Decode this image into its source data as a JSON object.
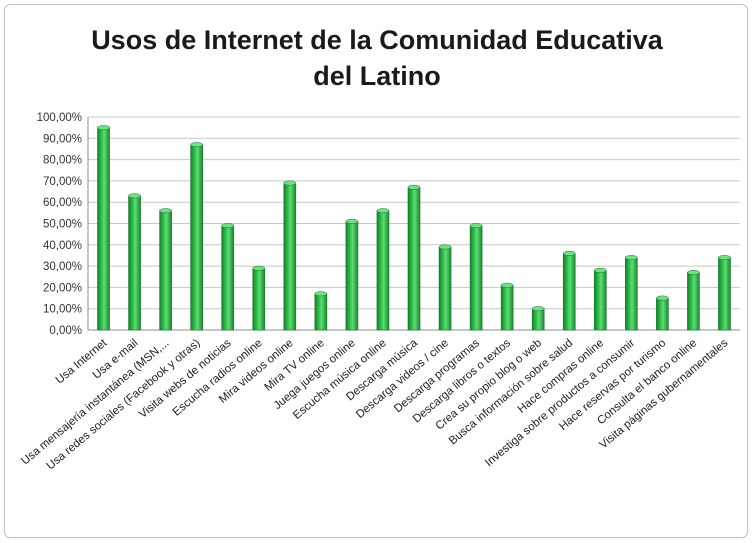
{
  "chart_data": {
    "type": "bar",
    "title": "Usos de Internet de la Comunidad Educativa\ndel Latino",
    "xlabel": "",
    "ylabel": "",
    "ylim": [
      0,
      100
    ],
    "yticks": [
      "0,00%",
      "10,00%",
      "20,00%",
      "30,00%",
      "40,00%",
      "50,00%",
      "60,00%",
      "70,00%",
      "80,00%",
      "90,00%",
      "100,00%"
    ],
    "grid": true,
    "legend": "none",
    "bar_color": "#22a93a",
    "categories": [
      "Usa Internet",
      "Usa e-mail",
      "Usa mensajería instantánea (MSN,...",
      "Usa redes sociales (Facebook y otras)",
      "Visita webs de noticias",
      "Escucha radios online",
      "Mira videos online",
      "Mira TV online",
      "Juega juegos online",
      "Escucha música online",
      "Descarga música",
      "Descarga videos / cine",
      "Descarga programas",
      "Descarga libros o textos",
      "Crea su propio blog o web",
      "Busca información sobre salud",
      "Hace compras online",
      "Investiga sobre productos a consumir",
      "Hace reservas por turismo",
      "Consulta el banco online",
      "Visita páginas gubernamentales"
    ],
    "values": [
      95,
      63,
      56,
      87,
      49,
      29,
      69,
      17,
      51,
      56,
      67,
      39,
      49,
      21,
      10,
      36,
      28,
      34,
      15,
      27,
      34
    ]
  }
}
